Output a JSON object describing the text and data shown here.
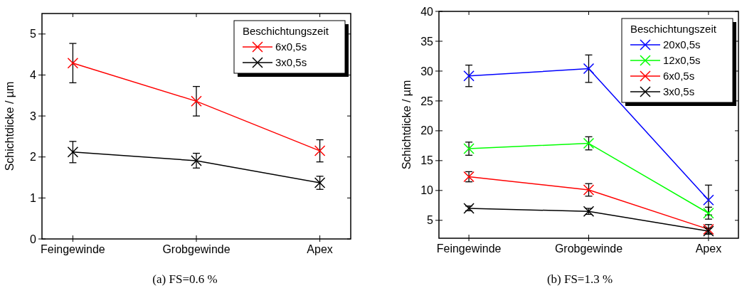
{
  "chart_data": [
    {
      "type": "line",
      "ylabel": "Schichtdicke / µm",
      "legend_title": "Beschichtungszeit",
      "categories": [
        "Feingewinde",
        "Grobgewinde",
        "Apex"
      ],
      "ylim": [
        0,
        5.5
      ],
      "yticks": [
        0,
        1,
        2,
        3,
        4,
        5
      ],
      "marker": "cross",
      "legend": "top right",
      "annotations": [
        "(a)  FS=0.6 %"
      ],
      "series": [
        {
          "name": "6x0,5s",
          "color": "#ff0000",
          "values": [
            4.29,
            3.36,
            2.15
          ],
          "errors": [
            0.48,
            0.36,
            0.27
          ]
        },
        {
          "name": "3x0,5s",
          "color": "#000000",
          "values": [
            2.12,
            1.91,
            1.37
          ],
          "errors": [
            0.26,
            0.18,
            0.16
          ]
        }
      ]
    },
    {
      "type": "line",
      "ylabel": "Schichtdicke / µm",
      "legend_title": "Beschichtungszeit",
      "categories": [
        "Feingewinde",
        "Grobgewinde",
        "Apex"
      ],
      "ylim": [
        2,
        40
      ],
      "yticks": [
        5,
        10,
        15,
        20,
        25,
        30,
        35,
        40
      ],
      "marker": "cross",
      "legend": "top right",
      "annotations": [
        "(b)  FS=1.3 %"
      ],
      "series": [
        {
          "name": "20x0,5s",
          "color": "#0000ff",
          "values": [
            29.2,
            30.4,
            8.4
          ],
          "errors": [
            1.8,
            2.3,
            2.5
          ]
        },
        {
          "name": "12x0,5s",
          "color": "#00ff00",
          "values": [
            17.0,
            17.9,
            6.2
          ],
          "errors": [
            1.1,
            1.1,
            1.0
          ]
        },
        {
          "name": "6x0,5s",
          "color": "#ff0000",
          "values": [
            12.3,
            10.1,
            3.5
          ],
          "errors": [
            0.85,
            1.05,
            0.8
          ]
        },
        {
          "name": "3x0,5s",
          "color": "#000000",
          "values": [
            7.0,
            6.5,
            3.2
          ],
          "errors": [
            0.4,
            0.5,
            0.5
          ]
        }
      ]
    }
  ]
}
